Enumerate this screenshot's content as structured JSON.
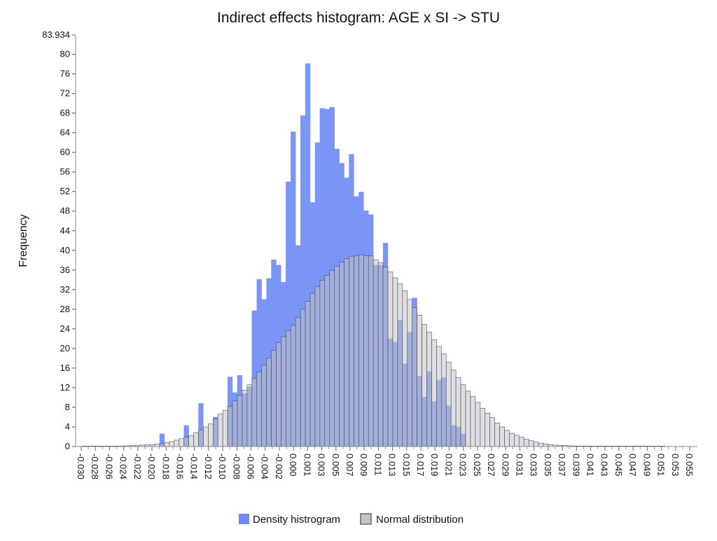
{
  "chart_data": {
    "type": "bar",
    "title": "Indirect effects histogram: AGE x SI -> STU",
    "xlabel": "",
    "ylabel": "Frequency",
    "ylim": [
      0,
      83.934
    ],
    "y_top_label": "83.934",
    "y_ticks": [
      0,
      4,
      8,
      12,
      16,
      20,
      24,
      28,
      32,
      36,
      40,
      44,
      48,
      52,
      56,
      60,
      64,
      68,
      72,
      76,
      80
    ],
    "x_tick_labels": [
      "-0.030",
      "-0.028",
      "-0.026",
      "-0.024",
      "-0.022",
      "-0.020",
      "-0.018",
      "-0.016",
      "-0.014",
      "-0.012",
      "-0.010",
      "-0.008",
      "-0.006",
      "-0.004",
      "-0.002",
      "0.000",
      "0.001",
      "0.003",
      "0.005",
      "0.007",
      "0.009",
      "0.011",
      "0.013",
      "0.015",
      "0.017",
      "0.019",
      "0.021",
      "0.023",
      "0.025",
      "0.027",
      "0.029",
      "0.031",
      "0.033",
      "0.035",
      "0.037",
      "0.039",
      "0.041",
      "0.043",
      "0.045",
      "0.047",
      "0.049",
      "0.051",
      "0.053",
      "0.055"
    ],
    "legend_position": "bottom-center",
    "grid": false,
    "series": [
      {
        "name": "Density histrogram",
        "color": "#6f8cf5",
        "values": [
          0,
          0,
          0,
          0,
          0,
          0,
          0,
          0,
          0,
          0,
          0,
          0,
          0,
          0,
          0,
          0,
          2.6,
          0,
          0,
          0,
          0,
          4.3,
          0,
          0,
          8.8,
          0,
          0,
          6.0,
          0,
          0,
          14.2,
          11.0,
          14.5,
          10.8,
          12.2,
          27.7,
          34.1,
          30.0,
          34.3,
          38.1,
          37.0,
          33.5,
          54.0,
          64.2,
          41.0,
          67.5,
          78.1,
          49.8,
          62.0,
          69.0,
          68.8,
          69.2,
          60.7,
          57.8,
          54.8,
          59.6,
          51.0,
          51.9,
          48.1,
          47.3,
          37.0,
          37.0,
          41.5,
          22.0,
          21.3,
          25.8,
          16.9,
          23.3,
          30.3,
          14.4,
          10.1,
          15.3,
          9.2,
          13.6,
          14.1,
          8.3,
          4.3,
          4.0,
          2.6,
          0,
          0,
          0,
          0,
          0,
          0,
          0,
          0,
          0,
          0,
          0,
          0,
          0,
          0,
          0,
          0,
          0,
          0,
          0,
          0,
          0,
          0,
          0,
          0,
          0,
          0,
          0,
          0,
          0,
          0,
          0,
          0,
          0,
          0,
          0,
          0,
          0,
          0,
          0,
          0,
          0,
          0,
          0,
          0,
          0,
          0,
          0
        ]
      },
      {
        "name": "Normal distribution",
        "color": "#c4c4c4",
        "values": [
          0.1,
          0.1,
          0.1,
          0.1,
          0.1,
          0.1,
          0.1,
          0.1,
          0.1,
          0.15,
          0.2,
          0.25,
          0.3,
          0.35,
          0.4,
          0.5,
          0.6,
          0.8,
          1.0,
          1.3,
          1.6,
          1.9,
          2.2,
          2.8,
          3.4,
          4.0,
          4.6,
          5.6,
          6.6,
          7.4,
          8.2,
          9.3,
          10.4,
          11.5,
          12.6,
          13.9,
          15.2,
          16.6,
          18.0,
          19.6,
          21.2,
          22.4,
          23.6,
          24.7,
          26.3,
          28.0,
          29.6,
          31.2,
          32.6,
          33.9,
          34.9,
          35.9,
          36.8,
          37.6,
          38.3,
          38.8,
          38.9,
          39.1,
          38.9,
          38.9,
          38.1,
          37.5,
          36.6,
          35.6,
          34.4,
          33.2,
          31.8,
          30.0,
          28.3,
          26.8,
          24.9,
          23.3,
          21.8,
          20.4,
          18.9,
          17.2,
          15.6,
          14.1,
          12.6,
          11.3,
          10.2,
          9.0,
          7.8,
          6.8,
          5.9,
          4.8,
          4.0,
          3.3,
          2.7,
          2.3,
          1.9,
          1.5,
          1.2,
          0.9,
          0.7,
          0.5,
          0.4,
          0.3,
          0.25,
          0.2,
          0.15,
          0.1,
          0.1,
          0.1,
          0.1,
          0.1,
          0.1,
          0.1,
          0.1,
          0.1,
          0.1,
          0.1,
          0.1,
          0.1,
          0.1,
          0.1,
          0.1,
          0.1,
          0.1,
          0.1
        ]
      }
    ]
  }
}
